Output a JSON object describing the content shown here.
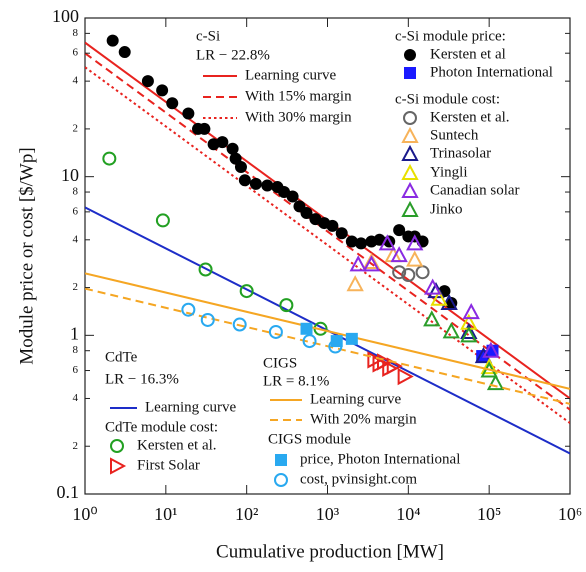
{
  "chart_data": {
    "type": "scatter",
    "x_label": "Cumulative production [MW]",
    "y_label": "Module price or cost [$/Wp]",
    "log_x": true,
    "log_y": true,
    "xlim": [
      1,
      1000000
    ],
    "xticks": [
      {
        "value": 1,
        "label": "10⁰"
      },
      {
        "value": 10,
        "label": "10¹"
      },
      {
        "value": 100,
        "label": "10²"
      },
      {
        "value": 1000,
        "label": "10³"
      },
      {
        "value": 10000,
        "label": "10⁴"
      },
      {
        "value": 100000,
        "label": "10⁵"
      },
      {
        "value": 1000000,
        "label": "10⁶"
      }
    ],
    "ylim": [
      0.1,
      100
    ],
    "yticks": [
      0.1,
      {
        "value": 0.2,
        "label": "2"
      },
      {
        "value": 0.4,
        "label": "4"
      },
      {
        "value": 0.6,
        "label": "6"
      },
      {
        "value": 0.8,
        "label": "8"
      },
      1,
      {
        "value": 2,
        "label": "2"
      },
      {
        "value": 4,
        "label": "4"
      },
      {
        "value": 6,
        "label": "6"
      },
      {
        "value": 8,
        "label": "8"
      },
      10,
      {
        "value": 20,
        "label": "2"
      },
      {
        "value": 40,
        "label": "4"
      },
      {
        "value": 60,
        "label": "6"
      },
      {
        "value": 80,
        "label": "8"
      },
      100
    ],
    "annotations": [
      "c-Si",
      "LR − 22.8%",
      "c-Si module price:",
      "c-Si module cost:",
      "CdTe",
      "LR − 16.3%",
      "CdTe module cost:",
      "CIGS",
      "LR = 8.1%",
      "CIGS module"
    ],
    "series": [
      {
        "name": "Learning curve",
        "color": "#e8231f",
        "marker": "line",
        "style": "solid",
        "x": [
          1,
          1000000
        ],
        "values": [
          70,
          0.4
        ]
      },
      {
        "name": "With 15% margin",
        "color": "#e8231f",
        "marker": "line",
        "style": "dashed",
        "x": [
          1,
          1000000
        ],
        "values": [
          60,
          0.34
        ]
      },
      {
        "name": "With 30% margin",
        "color": "#e8231f",
        "marker": "line",
        "style": "dotted",
        "x": [
          1,
          1000000
        ],
        "values": [
          49,
          0.28
        ]
      },
      {
        "name": "Kersten et al",
        "color": "#000000",
        "marker": "circle-filled",
        "x": [
          2.2,
          3.1,
          6,
          9,
          12,
          19,
          25,
          30,
          39,
          50,
          67,
          73,
          85,
          95,
          130,
          180,
          240,
          290,
          370,
          450,
          550,
          710,
          910,
          1150,
          1500,
          2000,
          2600,
          3500,
          4400,
          5800,
          7700,
          10000,
          12000,
          15000,
          28000,
          34000
        ],
        "values": [
          72,
          61,
          40,
          35,
          29,
          25,
          20,
          20,
          16,
          16.5,
          15,
          13,
          11.5,
          9.5,
          9,
          8.8,
          8.6,
          8,
          7.5,
          6.5,
          5.9,
          5.4,
          5.1,
          4.9,
          4.4,
          3.9,
          3.8,
          3.9,
          4,
          3.9,
          4.6,
          4.2,
          4.2,
          3.9,
          1.9,
          1.6
        ]
      },
      {
        "name": "Photon International",
        "color": "#1a1aff",
        "marker": "square",
        "x": [
          82000,
          110000
        ],
        "values": [
          0.74,
          0.8
        ]
      },
      {
        "name": "Kersten et al.",
        "color": "#666666",
        "marker": "circle",
        "x": [
          7700,
          10000,
          15000
        ],
        "values": [
          2.5,
          2.4,
          2.5
        ]
      },
      {
        "name": "Suntech",
        "color": "#f7b35a",
        "marker": "triangle",
        "x": [
          2200,
          3500,
          6500,
          12000
        ],
        "values": [
          2.1,
          2.9,
          3.2,
          3.0
        ]
      },
      {
        "name": "Trinasolar",
        "color": "#1a1a8c",
        "marker": "triangle",
        "x": [
          22000,
          32000,
          56000,
          85000
        ],
        "values": [
          1.9,
          1.6,
          1.05,
          0.74
        ]
      },
      {
        "name": "Yingli",
        "color": "#e8e000",
        "marker": "triangle",
        "x": [
          24000,
          56000,
          100000
        ],
        "values": [
          1.7,
          1.2,
          0.63
        ]
      },
      {
        "name": "Canadian solar",
        "color": "#8a2be2",
        "marker": "triangle",
        "x": [
          2400,
          3500,
          5500,
          7700,
          12000,
          20000,
          60000,
          105000
        ],
        "values": [
          2.8,
          2.8,
          3.8,
          3.2,
          3.8,
          2.0,
          1.4,
          0.8
        ]
      },
      {
        "name": "Jinko",
        "color": "#2a9d2a",
        "marker": "triangle",
        "x": [
          19500,
          34000,
          56000,
          100000,
          120000
        ],
        "values": [
          1.26,
          1.06,
          1.0,
          0.6,
          0.5
        ]
      },
      {
        "name": "Learning curve",
        "color": "#1d2dc8",
        "marker": "line",
        "style": "solid",
        "x": [
          1,
          1000000
        ],
        "values": [
          6.4,
          0.18
        ]
      },
      {
        "name": "Kersten et al.",
        "color": "#22a022",
        "marker": "circle",
        "x": [
          2.0,
          9.2,
          31,
          100,
          310,
          820
        ],
        "values": [
          13,
          5.3,
          2.6,
          1.9,
          1.55,
          1.1
        ]
      },
      {
        "name": "First Solar",
        "color": "#e8231f",
        "marker": "triangle-right",
        "x": [
          3800,
          4400,
          5000,
          5800,
          6600,
          9000
        ],
        "values": [
          0.7,
          0.66,
          0.68,
          0.62,
          0.64,
          0.55
        ]
      },
      {
        "name": "Learning curve",
        "color": "#f5a623",
        "marker": "line",
        "style": "solid",
        "x": [
          1,
          1000000
        ],
        "values": [
          2.46,
          0.46
        ]
      },
      {
        "name": "With 20% margin",
        "color": "#f5a623",
        "marker": "line",
        "style": "dashed",
        "x": [
          1,
          1000000
        ],
        "values": [
          1.97,
          0.37
        ]
      },
      {
        "name": "price, Photon International",
        "color": "#29a9f0",
        "marker": "square",
        "x": [
          550,
          1300,
          2000
        ],
        "values": [
          1.1,
          0.92,
          0.95
        ]
      },
      {
        "name": "cost, pvinsight.com",
        "color": "#29a9f0",
        "marker": "circle",
        "x": [
          19,
          33,
          82,
          230,
          600,
          1250
        ],
        "values": [
          1.45,
          1.25,
          1.17,
          1.05,
          0.92,
          0.85
        ]
      }
    ]
  }
}
